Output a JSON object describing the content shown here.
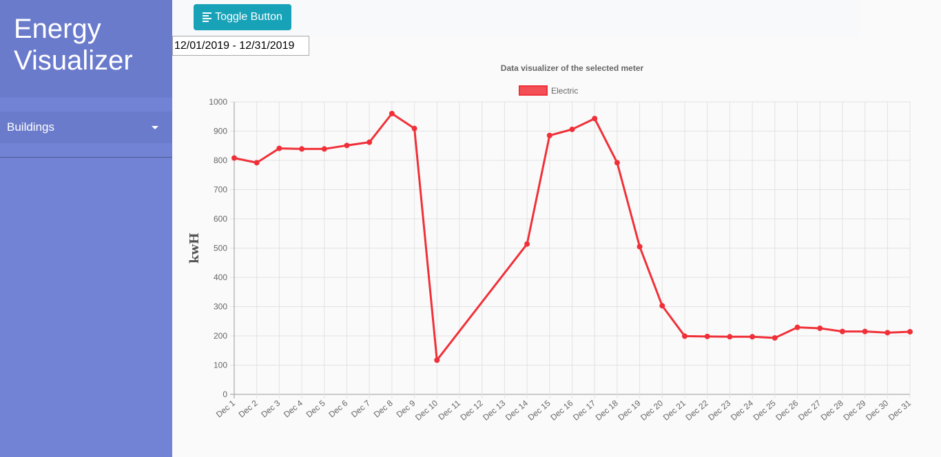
{
  "app": {
    "title_line1": "Energy",
    "title_line2": "Visualizer"
  },
  "sidebar": {
    "items": [
      {
        "label": "Buildings"
      }
    ]
  },
  "toolbar": {
    "toggle_label": "Toggle Button"
  },
  "date_range": {
    "value": "12/01/2019 - 12/31/2019"
  },
  "colors": {
    "sidebar": "#7283d6",
    "sidebar_header": "#6b7bcc",
    "button": "#17a2b8",
    "series": "#f03038"
  },
  "chart_data": {
    "type": "line",
    "title": "Data visualizer of the selected meter",
    "ylabel": "kwH",
    "xlabel": "",
    "legend_position": "top",
    "grid": true,
    "ylim": [
      0,
      1000
    ],
    "y_ticks": [
      0,
      100,
      200,
      300,
      400,
      500,
      600,
      700,
      800,
      900,
      1000
    ],
    "categories": [
      "Dec 1",
      "Dec 2",
      "Dec 3",
      "Dec 4",
      "Dec 5",
      "Dec 6",
      "Dec 7",
      "Dec 8",
      "Dec 9",
      "Dec 10",
      "Dec 11",
      "Dec 12",
      "Dec 13",
      "Dec 14",
      "Dec 15",
      "Dec 16",
      "Dec 17",
      "Dec 18",
      "Dec 19",
      "Dec 20",
      "Dec 21",
      "Dec 22",
      "Dec 23",
      "Dec 24",
      "Dec 25",
      "Dec 26",
      "Dec 27",
      "Dec 28",
      "Dec 29",
      "Dec 30",
      "Dec 31"
    ],
    "series": [
      {
        "name": "Electric",
        "color": "#f03038",
        "values": [
          808,
          792,
          841,
          839,
          839,
          851,
          862,
          960,
          909,
          117,
          null,
          null,
          null,
          514,
          885,
          906,
          943,
          792,
          505,
          303,
          199,
          198,
          197,
          197,
          193,
          229,
          226,
          215,
          215,
          211,
          214
        ]
      }
    ]
  }
}
